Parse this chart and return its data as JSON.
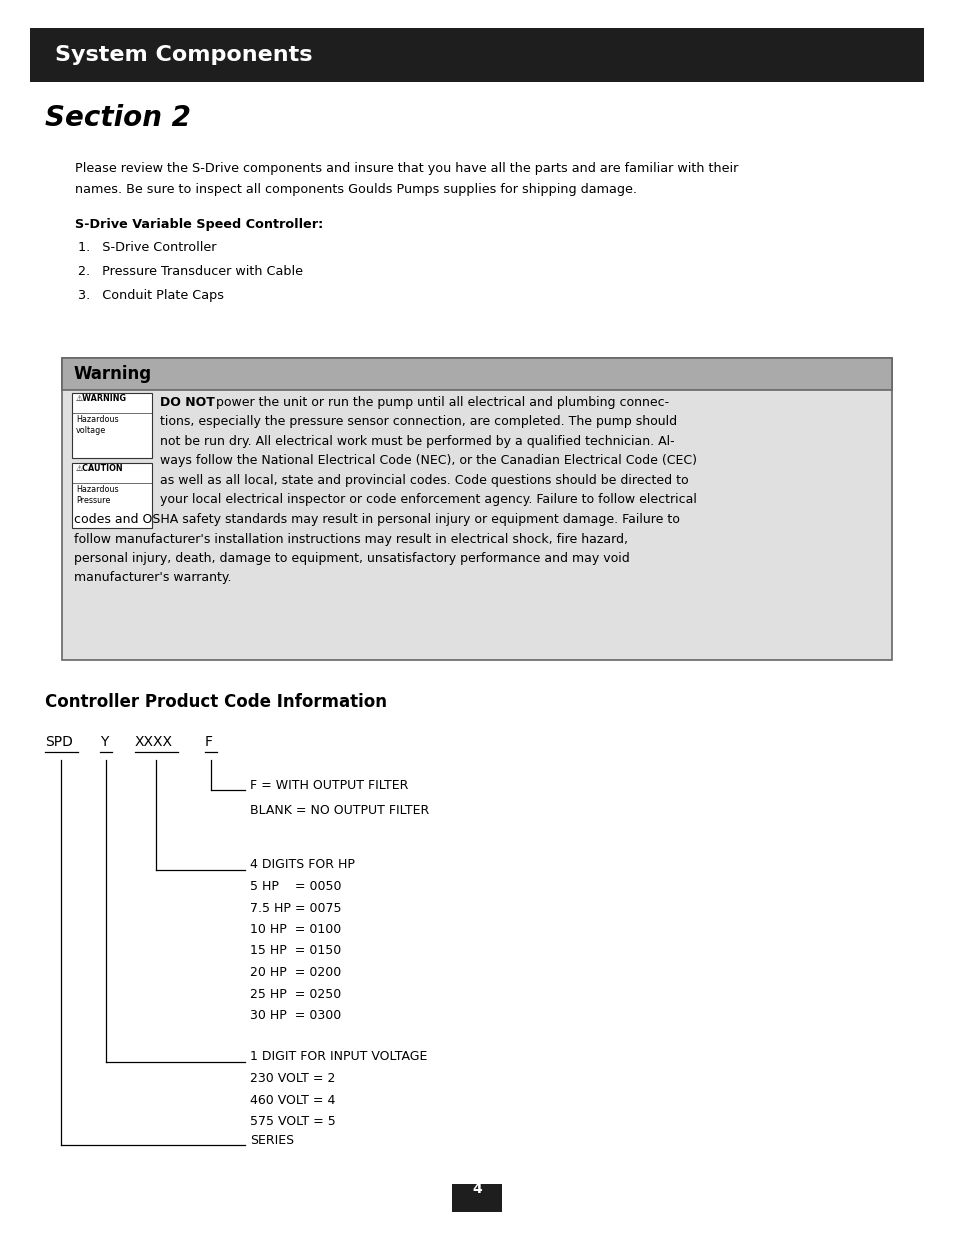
{
  "bg_color": "#ffffff",
  "header_bg": "#1e1e1e",
  "header_text": "System Components",
  "header_text_color": "#ffffff",
  "section_title": "Section 2",
  "intro_line1": "Please review the S-Drive components and insure that you have all the parts and are familiar with their",
  "intro_line2": "names. Be sure to inspect all components Goulds Pumps supplies for shipping damage.",
  "sdrive_label": "S-Drive Variable Speed Controller:",
  "list_items": [
    "S-Drive Controller",
    "Pressure Transducer with Cable",
    "Conduit Plate Caps"
  ],
  "warning_title": "Warning",
  "warning_header_bg": "#aaaaaa",
  "warning_box_bg": "#e0e0e0",
  "warning_body_lines": [
    "tions, especially the pressure sensor connection, are completed. The pump should",
    "not be run dry. All electrical work must be performed by a qualified technician. Al-",
    "ways follow the National Electrical Code (NEC), or the Canadian Electrical Code (CEC)",
    "as well as all local, state and provincial codes. Code questions should be directed to",
    "your local electrical inspector or code enforcement agency. Failure to follow electrical",
    "codes and OSHA safety standards may result in personal injury or equipment damage. Failure to",
    "follow manufacturer's installation instructions may result in electrical shock, fire hazard,",
    "personal injury, death, damage to equipment, unsatisfactory performance and may void",
    "manufacturer's warranty."
  ],
  "controller_title": "Controller Product Code Information",
  "page_number": "4"
}
